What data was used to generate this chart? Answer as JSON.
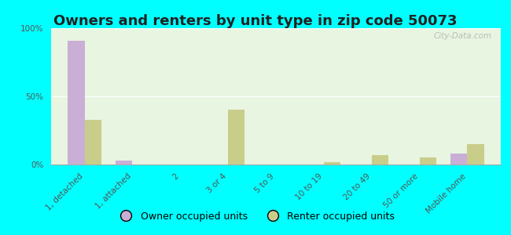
{
  "title": "Owners and renters by unit type in zip code 50073",
  "categories": [
    "1, detached",
    "1, attached",
    "2",
    "3 or 4",
    "5 to 9",
    "10 to 19",
    "20 to 49",
    "50 or more",
    "Mobile home"
  ],
  "owner_values": [
    91,
    3,
    0,
    0,
    0,
    0,
    0,
    0,
    8
  ],
  "renter_values": [
    33,
    0,
    0,
    40,
    0,
    2,
    7,
    5,
    15
  ],
  "owner_color": "#c9aed6",
  "renter_color": "#c8cd8a",
  "background_top": "#e8f5e0",
  "background_bottom": "#f0f8e8",
  "outer_background": "#00ffff",
  "ylim": [
    0,
    100
  ],
  "yticks": [
    0,
    50,
    100
  ],
  "ytick_labels": [
    "0%",
    "50%",
    "100%"
  ],
  "bar_width": 0.35,
  "legend_owner": "Owner occupied units",
  "legend_renter": "Renter occupied units",
  "watermark": "City-Data.com",
  "title_fontsize": 13,
  "tick_fontsize": 7.5,
  "legend_fontsize": 9
}
